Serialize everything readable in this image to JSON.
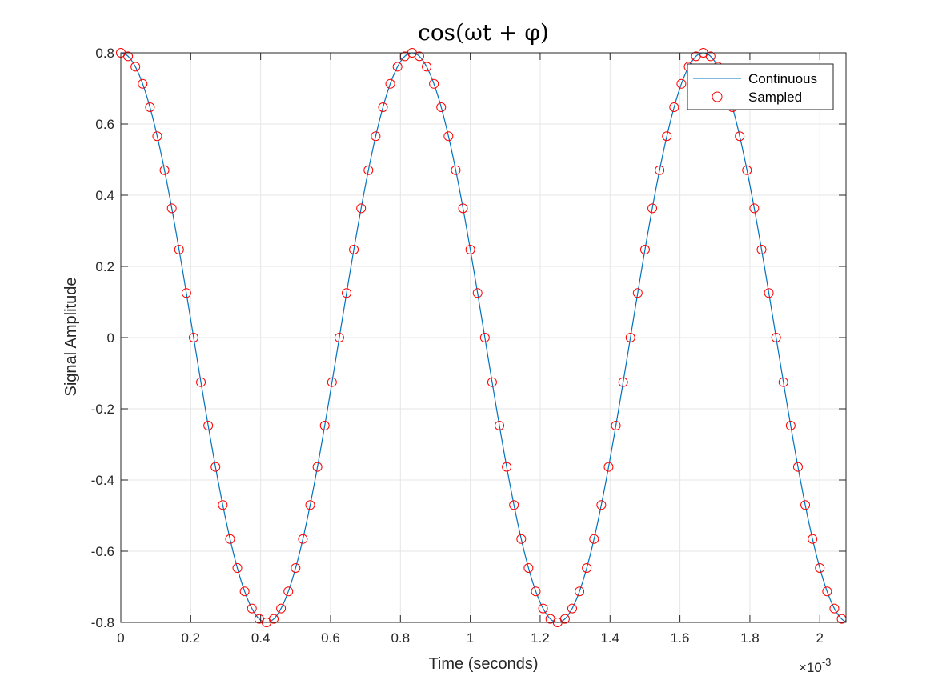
{
  "chart_data": {
    "type": "line",
    "title": "cos(ωt + φ)",
    "xlabel": "Time (seconds)",
    "ylabel": "Signal Amplitude",
    "x_exponent_label": "×10",
    "x_exponent_power": "-3",
    "xlim": [
      0,
      0.002075
    ],
    "ylim": [
      -0.8,
      0.8
    ],
    "x_ticks": [
      0,
      0.0002,
      0.0004,
      0.0006,
      0.0008,
      0.001,
      0.0012,
      0.0014,
      0.0016,
      0.0018,
      0.002
    ],
    "x_tick_labels": [
      "0",
      "0.2",
      "0.4",
      "0.6",
      "0.8",
      "1",
      "1.2",
      "1.4",
      "1.6",
      "1.8",
      "2"
    ],
    "y_ticks": [
      -0.8,
      -0.6,
      -0.4,
      -0.2,
      0,
      0.2,
      0.4,
      0.6,
      0.8
    ],
    "y_tick_labels": [
      "-0.8",
      "-0.6",
      "-0.4",
      "-0.2",
      "0",
      "0.2",
      "0.4",
      "0.6",
      "0.8"
    ],
    "grid": true,
    "legend_position": "top-right",
    "series": [
      {
        "name": "Continuous",
        "style": "line",
        "color": "#0072BD",
        "function": "0.8*cos(2*pi*1200*t)",
        "amplitude": 0.8,
        "frequency_hz": 1200,
        "phase": 0,
        "x_range": [
          0,
          0.002075
        ]
      },
      {
        "name": "Sampled",
        "style": "markers",
        "marker": "circle",
        "color": "#FF0000",
        "function": "0.8*cos(2*pi*1200*t)",
        "amplitude": 0.8,
        "frequency_hz": 1200,
        "phase": 0,
        "sample_rate_hz": 48000,
        "num_samples": 100
      }
    ]
  }
}
